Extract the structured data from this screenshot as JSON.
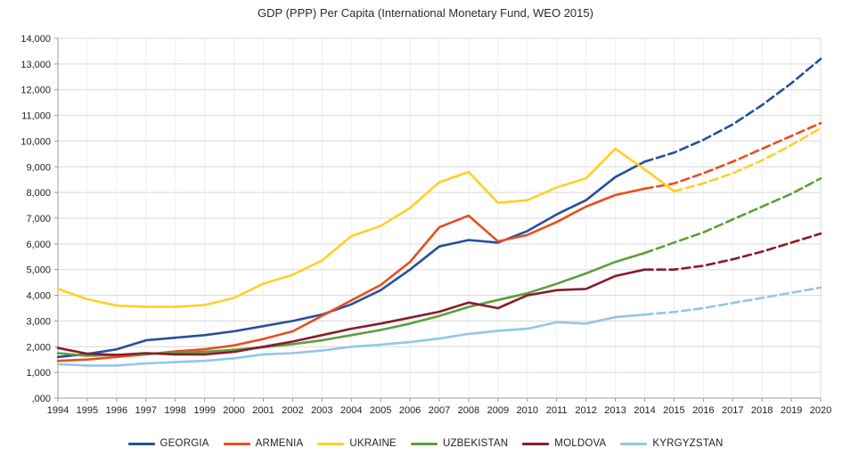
{
  "chart_data": {
    "type": "line",
    "title": "GDP (PPP) Per Capita (International Monetary Fund, WEO 2015)",
    "x": [
      1994,
      1995,
      1996,
      1997,
      1998,
      1999,
      2000,
      2001,
      2002,
      2003,
      2004,
      2005,
      2006,
      2007,
      2008,
      2009,
      2010,
      2011,
      2012,
      2013,
      2014,
      2015,
      2016,
      2017,
      2018,
      2019,
      2020
    ],
    "x_tick_labels": [
      "1994",
      "1995",
      "1996",
      "1997",
      "1998",
      "1999",
      "2000",
      "2001",
      "2002",
      "2003",
      "2004",
      "2005",
      "2006",
      "2007",
      "2008",
      "2009",
      "2010",
      "2011",
      "2012",
      "2013",
      "2014",
      "2015",
      "2016",
      "2017",
      "2018",
      "2019",
      "2020"
    ],
    "y_axis": {
      "min": 0,
      "max": 14000,
      "step": 1000,
      "tick_labels": [
        ",000",
        "1,000",
        "2,000",
        "3,000",
        "4,000",
        "5,000",
        "6,000",
        "7,000",
        "8,000",
        "9,000",
        "10,000",
        "11,000",
        "12,000",
        "13,000",
        "14,000"
      ]
    },
    "grid": true,
    "legend_position": "bottom",
    "note_dashed_segments": "values after forecast_from year are drawn dashed (IMF projections)",
    "series": [
      {
        "name": "GEORGIA",
        "color": "#27509B",
        "forecast_from": 2014,
        "values": [
          1600,
          1720,
          1900,
          2250,
          2350,
          2450,
          2600,
          2800,
          3000,
          3250,
          3650,
          4200,
          5000,
          5900,
          6150,
          6050,
          6500,
          7150,
          7700,
          8600,
          9200,
          9550,
          10050,
          10650,
          11400,
          12250,
          13200
        ]
      },
      {
        "name": "ARMENIA",
        "color": "#E94E1F",
        "forecast_from": 2014,
        "values": [
          1450,
          1500,
          1600,
          1700,
          1820,
          1900,
          2050,
          2300,
          2600,
          3200,
          3800,
          4400,
          5300,
          6650,
          7100,
          6100,
          6350,
          6850,
          7450,
          7900,
          8150,
          8350,
          8750,
          9200,
          9700,
          10200,
          10700
        ]
      },
      {
        "name": "UKRAINE",
        "color": "#FFD024",
        "forecast_from": 2015,
        "values": [
          4250,
          3850,
          3600,
          3550,
          3550,
          3620,
          3900,
          4450,
          4800,
          5350,
          6300,
          6700,
          7400,
          8400,
          8800,
          7600,
          7700,
          8200,
          8550,
          9700,
          8900,
          8050,
          8350,
          8750,
          9250,
          9850,
          10500
        ]
      },
      {
        "name": "UZBEKISTAN",
        "color": "#5C9F3E",
        "forecast_from": 2014,
        "values": [
          1750,
          1650,
          1680,
          1720,
          1760,
          1800,
          1880,
          1980,
          2100,
          2250,
          2450,
          2650,
          2900,
          3200,
          3550,
          3820,
          4080,
          4450,
          4850,
          5300,
          5650,
          6050,
          6450,
          6950,
          7450,
          7950,
          8550
        ]
      },
      {
        "name": "MOLDOVA",
        "color": "#8A1B2A",
        "forecast_from": 2014,
        "values": [
          1950,
          1730,
          1680,
          1750,
          1700,
          1700,
          1800,
          2000,
          2200,
          2450,
          2700,
          2900,
          3130,
          3360,
          3720,
          3500,
          4000,
          4200,
          4250,
          4750,
          5000,
          5000,
          5150,
          5400,
          5700,
          6050,
          6400
        ]
      },
      {
        "name": "KYRGYZSTAN",
        "color": "#94C6EA",
        "forecast_from": 2014,
        "values": [
          1320,
          1270,
          1270,
          1350,
          1400,
          1450,
          1550,
          1700,
          1750,
          1850,
          2000,
          2080,
          2180,
          2320,
          2500,
          2620,
          2700,
          2950,
          2900,
          3150,
          3250,
          3350,
          3500,
          3700,
          3900,
          4100,
          4300
        ]
      }
    ],
    "style": {
      "grid_color": "#d9d9d9",
      "minor_grid_color": "#efefef",
      "axis_color": "#9a9a9a",
      "background": "#ffffff",
      "line_width": 2.6
    }
  }
}
